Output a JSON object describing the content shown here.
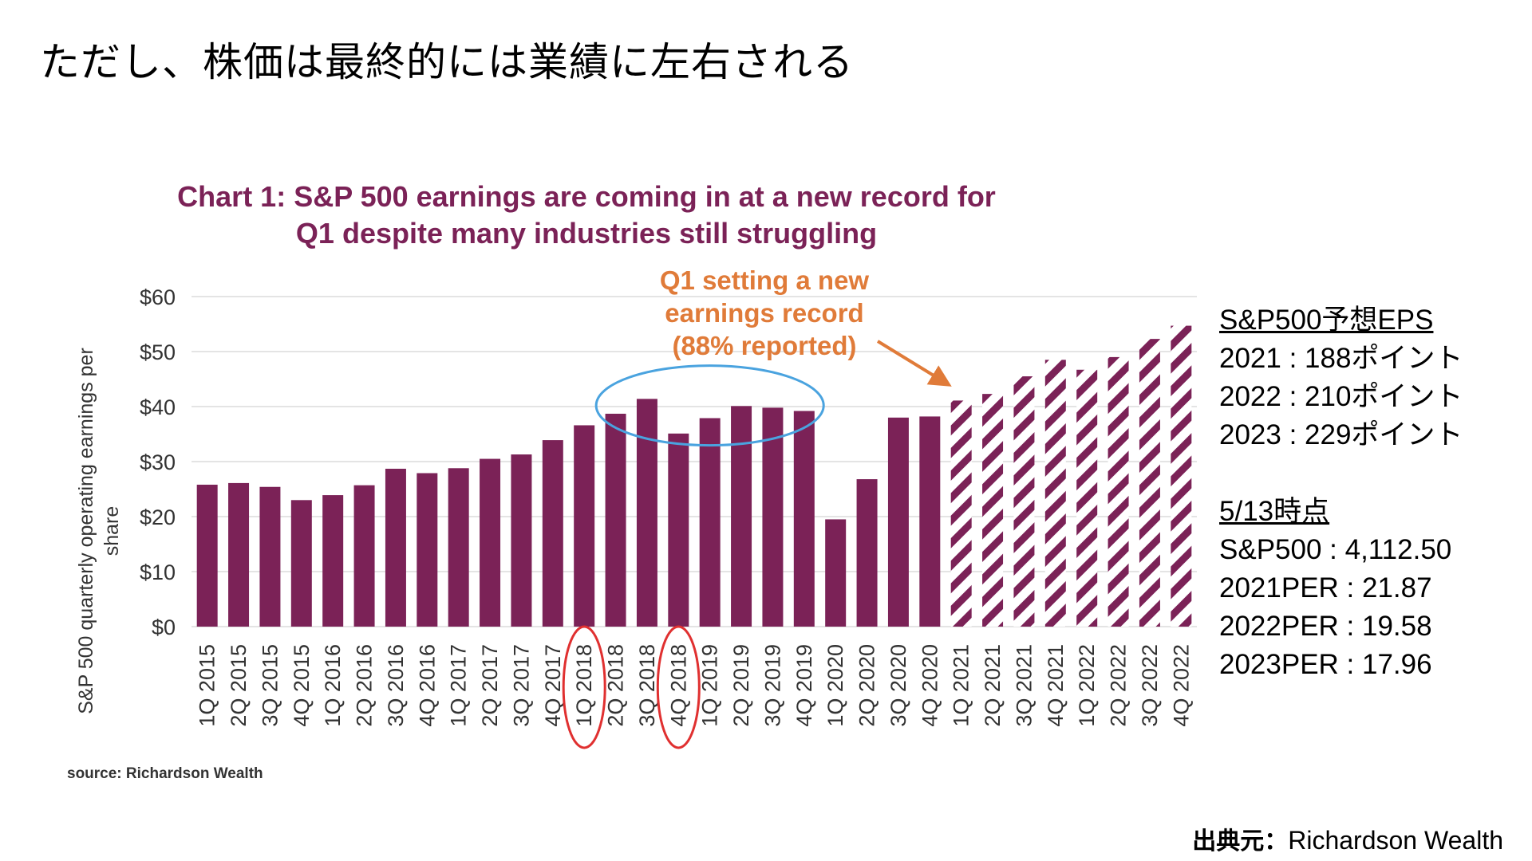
{
  "slide": {
    "title": "ただし、株価は最終的には業績に左右される",
    "source_credit_prefix": "出典元：",
    "source_credit_name": "Richardson Wealth"
  },
  "chart_data": {
    "type": "bar",
    "title_line1": "Chart 1: S&P 500 earnings are coming in at a new record for",
    "title_line2": "Q1 despite many industries still struggling",
    "ylabel_line1": "S&P 500 quarterly operating earnings  per",
    "ylabel_line2": "share",
    "ylim": [
      0,
      60
    ],
    "yticks": [
      "$0",
      "$10",
      "$20",
      "$30",
      "$40",
      "$50",
      "$60"
    ],
    "categories": [
      "1Q 2015",
      "2Q 2015",
      "3Q 2015",
      "4Q 2015",
      "1Q 2016",
      "2Q 2016",
      "3Q 2016",
      "4Q 2016",
      "1Q 2017",
      "2Q 2017",
      "3Q 2017",
      "4Q 2017",
      "1Q 2018",
      "2Q 2018",
      "3Q 2018",
      "4Q 2018",
      "1Q 2019",
      "2Q 2019",
      "3Q 2019",
      "4Q 2019",
      "1Q 2020",
      "2Q 2020",
      "3Q 2020",
      "4Q 2020",
      "1Q 2021",
      "2Q 2021",
      "3Q 2021",
      "4Q 2021",
      "1Q 2022",
      "2Q 2022",
      "3Q 2022",
      "4Q 2022"
    ],
    "series": [
      {
        "values": [
          25.8,
          26.1,
          25.4,
          23.0,
          23.9,
          25.7,
          28.7,
          27.9,
          28.8,
          30.5,
          31.3,
          33.9,
          36.6,
          38.7,
          41.4,
          35.1,
          37.9,
          40.1,
          39.8,
          39.2,
          19.5,
          26.8,
          38.0,
          38.2,
          null,
          null,
          null,
          null,
          null,
          null,
          null,
          null
        ],
        "color": "#7b2257",
        "style": "solid"
      },
      {
        "values": [
          null,
          null,
          null,
          null,
          null,
          null,
          null,
          null,
          null,
          null,
          null,
          null,
          null,
          null,
          null,
          null,
          null,
          null,
          null,
          null,
          null,
          null,
          null,
          null,
          41.1,
          42.3,
          45.5,
          48.5,
          46.7,
          49.0,
          52.3,
          54.7
        ],
        "color": "#7b2257",
        "style": "hatched"
      }
    ],
    "annotation_lines": [
      "Q1 setting a new",
      "earnings record",
      "(88% reported)"
    ],
    "annotation_color": "#e07b39",
    "highlight_ellipse_color": "#4aa3df",
    "highlight_circle_color": "#e03030",
    "source": "source: Richardson Wealth",
    "grid": true
  },
  "side_panel": {
    "eps_header": "S&P500予想EPS",
    "eps_lines": [
      "2021 : 188ポイント",
      "2022 : 210ポイント",
      "2023 : 229ポイント"
    ],
    "asof_header": "5/13時点",
    "asof_lines": [
      "S&P500  : 4,112.50",
      "2021PER : 21.87",
      "2022PER : 19.58",
      "2023PER : 17.96"
    ]
  }
}
